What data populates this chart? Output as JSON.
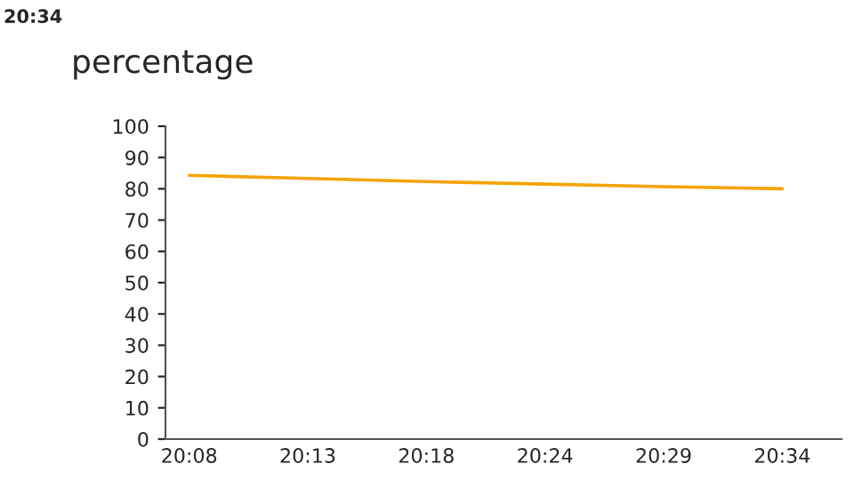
{
  "chart_data": {
    "type": "line",
    "title": "percentage",
    "annotations": [
      "20:34"
    ],
    "categories": [
      "20:08",
      "20:13",
      "20:18",
      "20:24",
      "20:29",
      "20:34"
    ],
    "series": [
      {
        "color": "#f5a300",
        "values": [
          84.3,
          83.3,
          82.3,
          81.5,
          80.7,
          80
        ]
      }
    ],
    "ylim": [
      0,
      100
    ],
    "yticks": [
      0,
      10,
      20,
      30,
      40,
      50,
      60,
      70,
      80,
      90,
      100
    ],
    "grid": false,
    "legend": false,
    "marker": "none",
    "line_style": "solid"
  }
}
